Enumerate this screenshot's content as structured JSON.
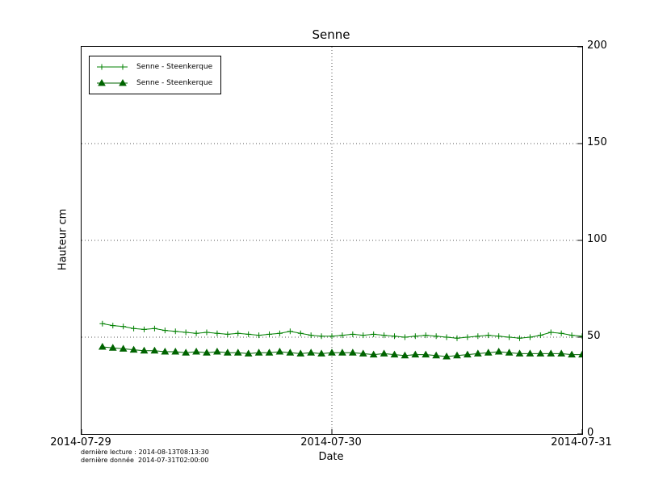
{
  "footer": {
    "line1": "dernière lecture : 2014-08-13T08:13:30",
    "line2": "dernière donnée  2014-07-31T02:00:00"
  },
  "chart_data": {
    "type": "line",
    "title": "Senne",
    "xlabel": "Date",
    "ylabel": "Hauteur cm",
    "ylim": [
      0,
      200
    ],
    "xlim": [
      0,
      48
    ],
    "x_start": 2,
    "x_end": 48,
    "x_unit": "hours since 2014-07-29T00:00",
    "yticks": [
      0,
      50,
      100,
      150,
      200
    ],
    "xticks": [
      "2014-07-29",
      "2014-07-30",
      "2014-07-31"
    ],
    "xtick_hours": [
      0,
      24,
      48
    ],
    "grid": true,
    "grid_style": "dotted",
    "legend_position": "upper left",
    "series": [
      {
        "name": "Senne - Steenkerque",
        "marker": "plus",
        "color": "#008000",
        "values": [
          57,
          56,
          55.5,
          54.5,
          54,
          54.5,
          53.5,
          53,
          52.5,
          52,
          52.5,
          52,
          51.5,
          52,
          51.5,
          51,
          51.5,
          52,
          53,
          52,
          51,
          50.5,
          50.5,
          51,
          51.5,
          51,
          51.5,
          51,
          50.5,
          50,
          50.5,
          51,
          50.5,
          50,
          49.5,
          50,
          50.5,
          51,
          50.5,
          50,
          49.5,
          50,
          51,
          52.5,
          52,
          51,
          50.5
        ]
      },
      {
        "name": "Senne - Steenkerque",
        "marker": "triangle",
        "color": "#006400",
        "values": [
          45,
          44.5,
          44,
          43.5,
          43,
          43,
          42.5,
          42.5,
          42,
          42.5,
          42,
          42.5,
          42,
          42,
          41.5,
          42,
          42,
          42.5,
          42,
          41.5,
          42,
          41.5,
          42,
          42,
          42,
          41.5,
          41,
          41.5,
          41,
          40.5,
          41,
          41,
          40.5,
          40,
          40.5,
          41,
          41.5,
          42,
          42.5,
          42,
          41.5,
          41.5,
          41.5,
          41.5,
          41.5,
          41,
          41
        ]
      }
    ]
  }
}
